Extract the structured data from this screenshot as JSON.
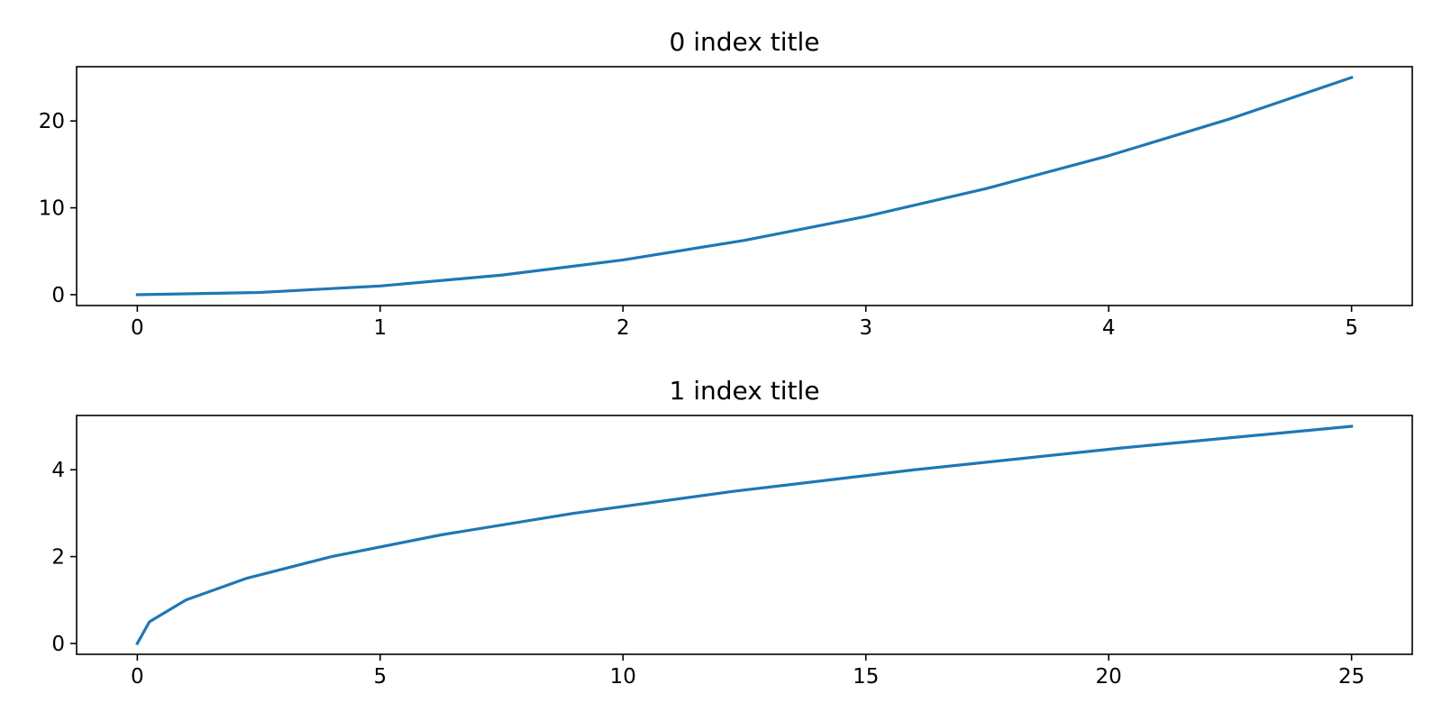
{
  "chart_data": [
    {
      "type": "line",
      "title": "0 index title",
      "xlabel": "",
      "ylabel": "",
      "xlim": [
        -0.25,
        5.25
      ],
      "ylim": [
        -1.25,
        26.25
      ],
      "xticks": [
        0,
        1,
        2,
        3,
        4,
        5
      ],
      "xtick_labels": [
        "0",
        "1",
        "2",
        "3",
        "4",
        "5"
      ],
      "yticks": [
        0,
        10,
        20
      ],
      "ytick_labels": [
        "0",
        "10",
        "20"
      ],
      "grid": false,
      "series": [
        {
          "color": "#1f77b4",
          "x": [
            0,
            0.5,
            1,
            1.5,
            2,
            2.5,
            3,
            3.5,
            4,
            4.5,
            5
          ],
          "y": [
            0,
            0.25,
            1,
            2.25,
            4,
            6.25,
            9,
            12.25,
            16,
            20.25,
            25
          ]
        }
      ]
    },
    {
      "type": "line",
      "title": "1 index title",
      "xlabel": "",
      "ylabel": "",
      "xlim": [
        -1.25,
        26.25
      ],
      "ylim": [
        -0.25,
        5.25
      ],
      "xticks": [
        0,
        5,
        10,
        15,
        20,
        25
      ],
      "xtick_labels": [
        "0",
        "5",
        "10",
        "15",
        "20",
        "25"
      ],
      "yticks": [
        0,
        2,
        4
      ],
      "ytick_labels": [
        "0",
        "2",
        "4"
      ],
      "grid": false,
      "series": [
        {
          "color": "#1f77b4",
          "x": [
            0,
            0.25,
            1,
            2.25,
            4,
            6.25,
            9,
            12.25,
            16,
            20.25,
            25
          ],
          "y": [
            0,
            0.5,
            1,
            1.5,
            2,
            2.5,
            3,
            3.5,
            4,
            4.5,
            5
          ]
        }
      ]
    }
  ]
}
